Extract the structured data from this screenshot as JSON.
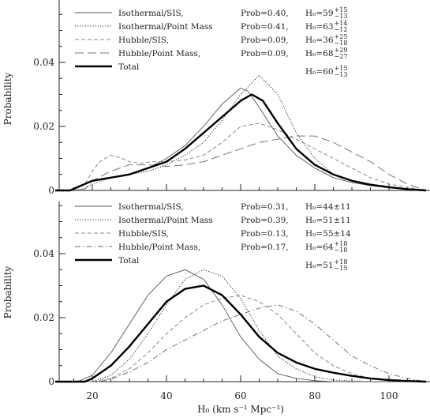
{
  "chart_data": [
    {
      "type": "line",
      "xlabel": "",
      "ylabel": "Probability",
      "xlim": [
        10,
        110
      ],
      "ylim": [
        0,
        0.058
      ],
      "yticks": [
        "0",
        "0.02",
        "0.04"
      ],
      "xticks": [],
      "legend_position": "top",
      "series": [
        {
          "name": "Isothermal/SIS,",
          "prob": "Prob=0.40,",
          "h0": "H₀=59",
          "h0_err": "+15 / −13",
          "style": "solid-thin",
          "x": [
            10,
            14,
            16,
            20,
            25,
            30,
            35,
            40,
            45,
            50,
            55,
            60,
            62,
            65,
            70,
            75,
            80,
            85,
            90,
            95,
            100,
            105,
            110
          ],
          "y": [
            0,
            0,
            0.001,
            0.003,
            0.004,
            0.005,
            0.007,
            0.01,
            0.014,
            0.02,
            0.027,
            0.032,
            0.031,
            0.026,
            0.017,
            0.011,
            0.007,
            0.004,
            0.0025,
            0.0015,
            0.001,
            0.0005,
            0
          ]
        },
        {
          "name": "Isothermal/Point Mass",
          "prob": "Prob=0.41,",
          "h0": "H₀=63",
          "h0_err": "+14 / −12",
          "style": "dotted",
          "x": [
            10,
            14,
            18,
            20,
            25,
            30,
            35,
            40,
            45,
            50,
            55,
            60,
            65,
            70,
            75,
            80,
            85,
            90,
            95,
            100,
            105,
            110
          ],
          "y": [
            0,
            0,
            0.0005,
            0.002,
            0.004,
            0.005,
            0.006,
            0.008,
            0.011,
            0.015,
            0.022,
            0.03,
            0.036,
            0.03,
            0.018,
            0.01,
            0.005,
            0.003,
            0.0015,
            0.0008,
            0.0004,
            0
          ]
        },
        {
          "name": "Hubble/SIS,",
          "prob": "Prob=0.09,",
          "h0": "H₀=36",
          "h0_err": "+25 / −18",
          "style": "dashed-short",
          "x": [
            10,
            14,
            18,
            20,
            22,
            25,
            28,
            30,
            33,
            36,
            40,
            45,
            50,
            55,
            60,
            65,
            70,
            75,
            80,
            85,
            90,
            95,
            100,
            105,
            110
          ],
          "y": [
            0,
            0,
            0.002,
            0.006,
            0.009,
            0.011,
            0.01,
            0.009,
            0.0085,
            0.009,
            0.009,
            0.0095,
            0.011,
            0.015,
            0.02,
            0.021,
            0.019,
            0.016,
            0.013,
            0.01,
            0.007,
            0.004,
            0.002,
            0.001,
            0
          ]
        },
        {
          "name": "Hubble/Point Mass,",
          "prob": "Prob=0.09,",
          "h0": "H₀=68",
          "h0_err": "+29 / −27",
          "style": "dashed-long",
          "x": [
            10,
            14,
            18,
            20,
            25,
            30,
            35,
            40,
            45,
            50,
            55,
            60,
            65,
            70,
            75,
            80,
            85,
            90,
            95,
            100,
            105,
            110
          ],
          "y": [
            0,
            0,
            0.0005,
            0.003,
            0.006,
            0.008,
            0.008,
            0.0075,
            0.008,
            0.009,
            0.011,
            0.013,
            0.015,
            0.016,
            0.017,
            0.017,
            0.015,
            0.012,
            0.009,
            0.005,
            0.002,
            0
          ]
        },
        {
          "name": "Total",
          "prob": "",
          "h0": "H₀=60",
          "h0_err": "+15 / −13",
          "style": "solid-thick",
          "x": [
            10,
            14,
            16,
            20,
            25,
            30,
            35,
            40,
            45,
            50,
            55,
            60,
            63,
            66,
            70,
            75,
            80,
            85,
            90,
            95,
            100,
            105,
            110
          ],
          "y": [
            0,
            0,
            0.001,
            0.003,
            0.004,
            0.005,
            0.007,
            0.009,
            0.013,
            0.018,
            0.023,
            0.028,
            0.03,
            0.028,
            0.021,
            0.013,
            0.008,
            0.005,
            0.003,
            0.0018,
            0.001,
            0.0004,
            0
          ]
        }
      ]
    },
    {
      "type": "line",
      "xlabel": "H₀ (km s⁻¹ Mpc⁻¹)",
      "ylabel": "Probability",
      "xlim": [
        10,
        110
      ],
      "ylim": [
        0,
        0.058
      ],
      "yticks": [
        "0",
        "0.02",
        "0.04"
      ],
      "xticks": [
        "20",
        "40",
        "60",
        "80",
        "100"
      ],
      "legend_position": "top",
      "series": [
        {
          "name": "Isothermal/SIS,",
          "prob": "Prob=0.31,",
          "h0": "H₀=44±11",
          "h0_err": "",
          "style": "solid-thin",
          "x": [
            10,
            16,
            20,
            25,
            30,
            35,
            40,
            45,
            50,
            55,
            60,
            65,
            70,
            75,
            80,
            85,
            90,
            110
          ],
          "y": [
            0,
            0,
            0.002,
            0.009,
            0.018,
            0.027,
            0.033,
            0.035,
            0.032,
            0.024,
            0.014,
            0.007,
            0.0025,
            0.001,
            0.0003,
            0,
            0,
            0
          ]
        },
        {
          "name": "Isothermal/Point Mass",
          "prob": "Prob=0.39,",
          "h0": "H₀=51±11",
          "h0_err": "",
          "style": "dotted",
          "x": [
            10,
            20,
            25,
            30,
            35,
            40,
            45,
            50,
            55,
            60,
            65,
            70,
            75,
            80,
            85,
            90,
            95,
            110
          ],
          "y": [
            0,
            0,
            0.002,
            0.007,
            0.015,
            0.024,
            0.032,
            0.035,
            0.033,
            0.026,
            0.016,
            0.008,
            0.004,
            0.0015,
            0.0005,
            0.0002,
            0,
            0
          ]
        },
        {
          "name": "Hubble/SIS,",
          "prob": "Prob=0.13,",
          "h0": "H₀=55±14",
          "h0_err": "",
          "style": "dashed-short",
          "x": [
            10,
            20,
            25,
            30,
            35,
            40,
            45,
            50,
            55,
            60,
            65,
            70,
            75,
            80,
            85,
            90,
            95,
            100,
            110
          ],
          "y": [
            0,
            0,
            0.001,
            0.004,
            0.009,
            0.015,
            0.02,
            0.024,
            0.026,
            0.027,
            0.025,
            0.021,
            0.015,
            0.009,
            0.005,
            0.0025,
            0.001,
            0.0003,
            0
          ]
        },
        {
          "name": "Hubble/Point Mass,",
          "prob": "Prob=0.17,",
          "h0": "H₀=64",
          "h0_err": "+18 / −18",
          "style": "dashed-dot",
          "x": [
            10,
            22,
            25,
            30,
            35,
            40,
            45,
            50,
            55,
            60,
            65,
            70,
            75,
            80,
            85,
            90,
            95,
            100,
            105,
            110
          ],
          "y": [
            0,
            0,
            0.0008,
            0.003,
            0.006,
            0.01,
            0.013,
            0.016,
            0.019,
            0.021,
            0.023,
            0.024,
            0.022,
            0.018,
            0.013,
            0.008,
            0.005,
            0.0025,
            0.001,
            0
          ]
        },
        {
          "name": "Total",
          "prob": "",
          "h0": "H₀=51",
          "h0_err": "+18 / −15",
          "style": "solid-thick",
          "x": [
            10,
            18,
            20,
            25,
            30,
            35,
            40,
            45,
            50,
            55,
            60,
            65,
            70,
            75,
            80,
            85,
            90,
            95,
            100,
            105,
            110
          ],
          "y": [
            0,
            0,
            0.001,
            0.005,
            0.011,
            0.018,
            0.025,
            0.029,
            0.03,
            0.027,
            0.021,
            0.014,
            0.009,
            0.006,
            0.004,
            0.0028,
            0.0018,
            0.001,
            0.0005,
            0.0002,
            0
          ]
        }
      ]
    }
  ]
}
